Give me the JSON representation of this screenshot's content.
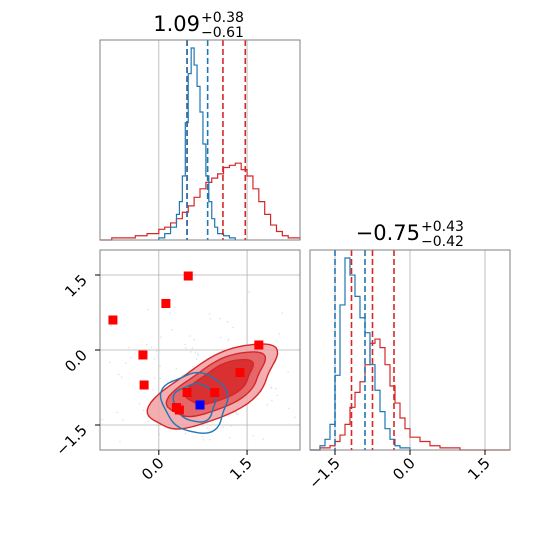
{
  "colors": {
    "posterior": "#d62728",
    "reference": "#1f77b4",
    "marker_red": "#ff0000",
    "marker_blue": "#0000ff",
    "grid": "#b0b0b0",
    "frame": "#808080"
  },
  "chart_data": [
    {
      "type": "histogram",
      "panel": "top-left marginal",
      "title": {
        "value": "1.09",
        "sup": "+0.38",
        "sub": "−0.61"
      },
      "xlim": [
        -1.0,
        2.4
      ],
      "grid": true,
      "red_quantiles": [
        0.48,
        1.09,
        1.47
      ],
      "blue_quantiles": [
        0.48,
        0.83
      ],
      "series": [
        {
          "color": "posterior",
          "x": [
            -1.0,
            -0.8,
            -0.6,
            -0.4,
            -0.2,
            0.0,
            0.1,
            0.2,
            0.3,
            0.4,
            0.5,
            0.6,
            0.7,
            0.8,
            0.9,
            1.0,
            1.1,
            1.2,
            1.3,
            1.4,
            1.5,
            1.6,
            1.7,
            1.8,
            1.9,
            2.0,
            2.1,
            2.2,
            2.4
          ],
          "y": [
            0.0,
            0.01,
            0.01,
            0.02,
            0.03,
            0.05,
            0.06,
            0.08,
            0.1,
            0.13,
            0.16,
            0.2,
            0.24,
            0.27,
            0.29,
            0.31,
            0.34,
            0.35,
            0.36,
            0.33,
            0.3,
            0.24,
            0.18,
            0.12,
            0.07,
            0.04,
            0.02,
            0.01,
            0.0
          ]
        },
        {
          "color": "reference",
          "x": [
            0.0,
            0.1,
            0.2,
            0.3,
            0.35,
            0.4,
            0.45,
            0.5,
            0.55,
            0.6,
            0.65,
            0.7,
            0.75,
            0.8,
            0.85,
            0.9,
            0.95,
            1.0,
            1.1,
            1.2,
            1.3
          ],
          "y": [
            0.01,
            0.03,
            0.06,
            0.12,
            0.18,
            0.3,
            0.55,
            0.78,
            0.9,
            0.82,
            0.72,
            0.6,
            0.45,
            0.3,
            0.18,
            0.1,
            0.06,
            0.03,
            0.02,
            0.01,
            0.0
          ]
        }
      ]
    },
    {
      "type": "scatter",
      "panel": "bottom-left joint",
      "xlim": [
        -1.0,
        2.4
      ],
      "ylim": [
        -2.0,
        2.0
      ],
      "xticks": [
        "0.0",
        "1.5"
      ],
      "yticks": [
        "−1.5",
        "0.0",
        "1.5"
      ],
      "grid": true,
      "red_points": [
        [
          -0.78,
          0.6
        ],
        [
          -0.27,
          -0.1
        ],
        [
          -0.25,
          -0.7
        ],
        [
          0.12,
          0.93
        ],
        [
          0.5,
          1.48
        ],
        [
          0.3,
          -1.15
        ],
        [
          0.35,
          -1.2
        ],
        [
          0.48,
          -0.85
        ],
        [
          0.95,
          -0.85
        ],
        [
          1.38,
          -0.45
        ],
        [
          1.7,
          0.1
        ]
      ],
      "blue_points": [
        [
          0.7,
          -1.1
        ]
      ],
      "red_contours": [
        {
          "level": "outer",
          "cx": 0.95,
          "cy": -0.75,
          "rx": 1.25,
          "ry": 0.55,
          "angle_deg": 35
        },
        {
          "level": "middle",
          "cx": 1.0,
          "cy": -0.7,
          "rx": 0.95,
          "ry": 0.42,
          "angle_deg": 35
        },
        {
          "level": "inner",
          "cx": 1.05,
          "cy": -0.65,
          "rx": 0.65,
          "ry": 0.3,
          "angle_deg": 35
        }
      ],
      "blue_contours": [
        {
          "level": "outer",
          "cx": 0.62,
          "cy": -1.05,
          "rx": 0.55,
          "ry": 0.6,
          "angle_deg": 15
        },
        {
          "level": "inner",
          "cx": 0.62,
          "cy": -1.05,
          "rx": 0.35,
          "ry": 0.38,
          "angle_deg": 15
        }
      ]
    },
    {
      "type": "histogram",
      "panel": "bottom-right marginal",
      "title": {
        "value": "−0.75",
        "sup": "+0.43",
        "sub": "−0.42"
      },
      "xlim": [
        -2.0,
        2.0
      ],
      "xticks": [
        "−1.5",
        "0.0",
        "1.5"
      ],
      "grid": true,
      "red_quantiles": [
        -1.17,
        -0.75,
        -0.32
      ],
      "blue_quantiles": [
        -1.5,
        -0.9
      ],
      "series": [
        {
          "color": "posterior",
          "x": [
            -2.0,
            -1.8,
            -1.6,
            -1.5,
            -1.4,
            -1.3,
            -1.2,
            -1.1,
            -1.0,
            -0.9,
            -0.8,
            -0.7,
            -0.6,
            -0.5,
            -0.4,
            -0.3,
            -0.2,
            -0.1,
            0.0,
            0.2,
            0.4,
            0.6,
            0.8,
            1.0,
            2.0
          ],
          "y": [
            0.0,
            0.01,
            0.02,
            0.04,
            0.07,
            0.12,
            0.2,
            0.27,
            0.32,
            0.4,
            0.5,
            0.52,
            0.48,
            0.4,
            0.3,
            0.22,
            0.15,
            0.1,
            0.06,
            0.04,
            0.02,
            0.01,
            0.01,
            0.0,
            0.0
          ]
        },
        {
          "color": "reference",
          "x": [
            -2.0,
            -1.8,
            -1.7,
            -1.6,
            -1.5,
            -1.4,
            -1.3,
            -1.2,
            -1.1,
            -1.0,
            -0.9,
            -0.8,
            -0.7,
            -0.6,
            -0.5,
            -0.4,
            -0.3,
            -0.2,
            0.0
          ],
          "y": [
            0.0,
            0.02,
            0.05,
            0.12,
            0.35,
            0.68,
            0.9,
            0.82,
            0.72,
            0.62,
            0.55,
            0.4,
            0.28,
            0.18,
            0.1,
            0.05,
            0.02,
            0.01,
            0.0
          ]
        }
      ]
    }
  ]
}
